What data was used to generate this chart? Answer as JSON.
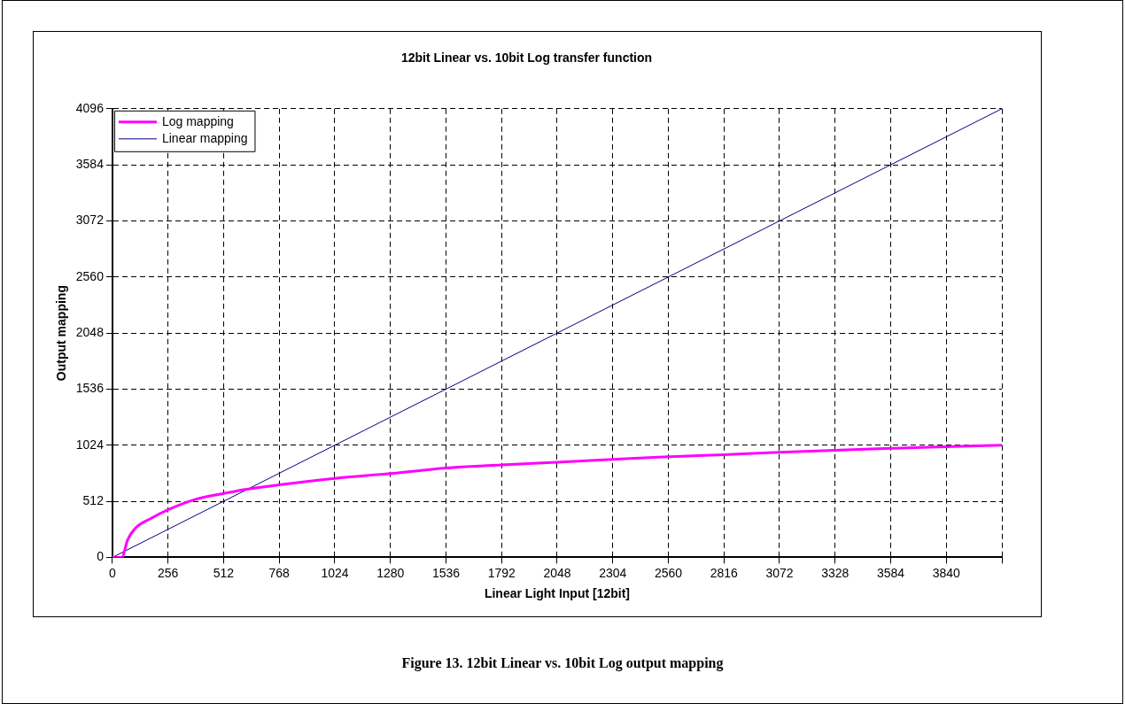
{
  "chart_data": {
    "type": "line",
    "title": "12bit Linear vs. 10bit Log transfer function",
    "xlabel": "Linear Light Input [12bit]",
    "ylabel": "Output mapping",
    "annotations": [
      "Figure 13. 12bit Linear vs. 10bit Log output mapping"
    ],
    "xlim": [
      0,
      4096
    ],
    "xticks": [
      0,
      256,
      512,
      768,
      1024,
      1280,
      1536,
      1792,
      2048,
      2304,
      2560,
      2816,
      3072,
      3328,
      3584,
      3840,
      {
        "value": 4096,
        "label": null
      }
    ],
    "ylim": [
      0,
      4096
    ],
    "yticks": [
      0,
      512,
      1024,
      1536,
      2048,
      2560,
      3072,
      3584,
      4096
    ],
    "grid": true,
    "legend": "top left",
    "marker": "none",
    "series": [
      {
        "name": "Log mapping",
        "color": "#ff00ff",
        "x": [
          0,
          43,
          70,
          105,
          175,
          256,
          383,
          512,
          605,
          766,
          1024,
          1280,
          1536,
          1792,
          2048,
          2304,
          2560,
          2816,
          3072,
          3328,
          3584,
          3840,
          4096
        ],
        "values": [
          0,
          0,
          160,
          265,
          353,
          435,
          530,
          583,
          618,
          662,
          721,
          765,
          815,
          844,
          869,
          894,
          919,
          937,
          959,
          977,
          995,
          1010,
          1024
        ]
      },
      {
        "name": "Linear mapping",
        "color": "#000080",
        "x": [
          0,
          4096
        ],
        "values": [
          0,
          4096
        ]
      }
    ]
  }
}
